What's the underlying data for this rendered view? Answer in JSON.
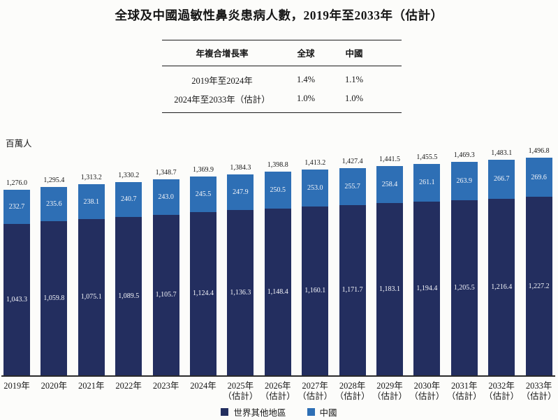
{
  "title": "全球及中國過敏性鼻炎患病人數，2019年至2033年（估計）",
  "unit_label": "百萬人",
  "growth_table": {
    "headers": [
      "年複合增長率",
      "全球",
      "中國"
    ],
    "rows": [
      {
        "period": "2019年至2024年",
        "global": "1.4%",
        "china": "1.1%"
      },
      {
        "period": "2024年至2033年（估計）",
        "global": "1.0%",
        "china": "1.0%"
      }
    ]
  },
  "legend": [
    {
      "label": "世界其他地區",
      "color": "#232e5f"
    },
    {
      "label": "中國",
      "color": "#2e6fb5"
    }
  ],
  "colors": {
    "rest_of_world": "#232e5f",
    "china": "#2e6fb5",
    "bar_label_text": "#f5f6fa",
    "axis_line": "#2a2a2a"
  },
  "chart_data": {
    "type": "bar",
    "stacked": true,
    "title": "全球及中國過敏性鼻炎患病人數，2019年至2033年（估計）",
    "ylabel": "百萬人",
    "legend_position": "bottom",
    "grid": false,
    "categories": [
      "2019年",
      "2020年",
      "2021年",
      "2022年",
      "2023年",
      "2024年",
      "2025年\n（估計）",
      "2026年\n（估計）",
      "2027年\n（估計）",
      "2028年\n（估計）",
      "2029年\n（估計）",
      "2030年\n（估計）",
      "2031年\n（估計）",
      "2032年\n（估計）",
      "2033年\n（估計）"
    ],
    "series": [
      {
        "name": "世界其他地區",
        "values": [
          1043.3,
          1059.8,
          1075.1,
          1089.5,
          1105.7,
          1124.4,
          1136.3,
          1148.4,
          1160.1,
          1171.7,
          1183.1,
          1194.4,
          1205.5,
          1216.4,
          1227.2
        ],
        "labels": [
          "1,043.3",
          "1,059.8",
          "1,075.1",
          "1,089.5",
          "1,105.7",
          "1,124.4",
          "1,136.3",
          "1,148.4",
          "1,160.1",
          "1,171.7",
          "1,183.1",
          "1,194.4",
          "1,205.5",
          "1,216.4",
          "1,227.2"
        ]
      },
      {
        "name": "中國",
        "values": [
          232.7,
          235.6,
          238.1,
          240.7,
          243.0,
          245.5,
          247.9,
          250.5,
          253.0,
          255.7,
          258.4,
          261.1,
          263.9,
          266.7,
          269.6
        ],
        "labels": [
          "232.7",
          "235.6",
          "238.1",
          "240.7",
          "243.0",
          "245.5",
          "247.9",
          "250.5",
          "253.0",
          "255.7",
          "258.4",
          "261.1",
          "263.9",
          "266.7",
          "269.6"
        ]
      }
    ],
    "totals": [
      1276.0,
      1295.4,
      1313.2,
      1330.2,
      1348.7,
      1369.9,
      1384.3,
      1398.8,
      1413.2,
      1427.4,
      1441.5,
      1455.5,
      1469.3,
      1483.1,
      1496.8
    ],
    "total_labels": [
      "1,276.0",
      "1,295.4",
      "1,313.2",
      "1,330.2",
      "1,348.7",
      "1,369.9",
      "1,384.3",
      "1,398.8",
      "1,413.2",
      "1,427.4",
      "1,441.5",
      "1,455.5",
      "1,469.3",
      "1,483.1",
      "1,496.8"
    ]
  }
}
